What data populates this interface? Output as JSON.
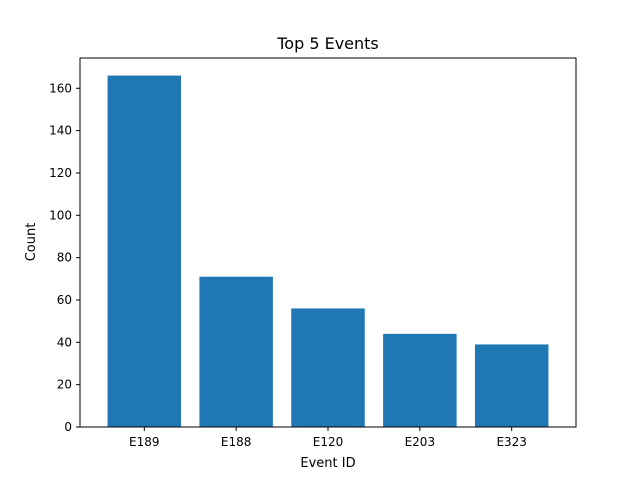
{
  "chart_data": {
    "type": "bar",
    "title": "Top 5 Events",
    "xlabel": "Event ID",
    "ylabel": "Count",
    "categories": [
      "E189",
      "E188",
      "E120",
      "E203",
      "E323"
    ],
    "values": [
      166,
      71,
      56,
      44,
      39
    ],
    "ylim": [
      0,
      174.3
    ],
    "yticks": [
      0,
      20,
      40,
      60,
      80,
      100,
      120,
      140,
      160
    ],
    "grid": false,
    "legend": "none",
    "bar_color": "#1f77b4"
  }
}
